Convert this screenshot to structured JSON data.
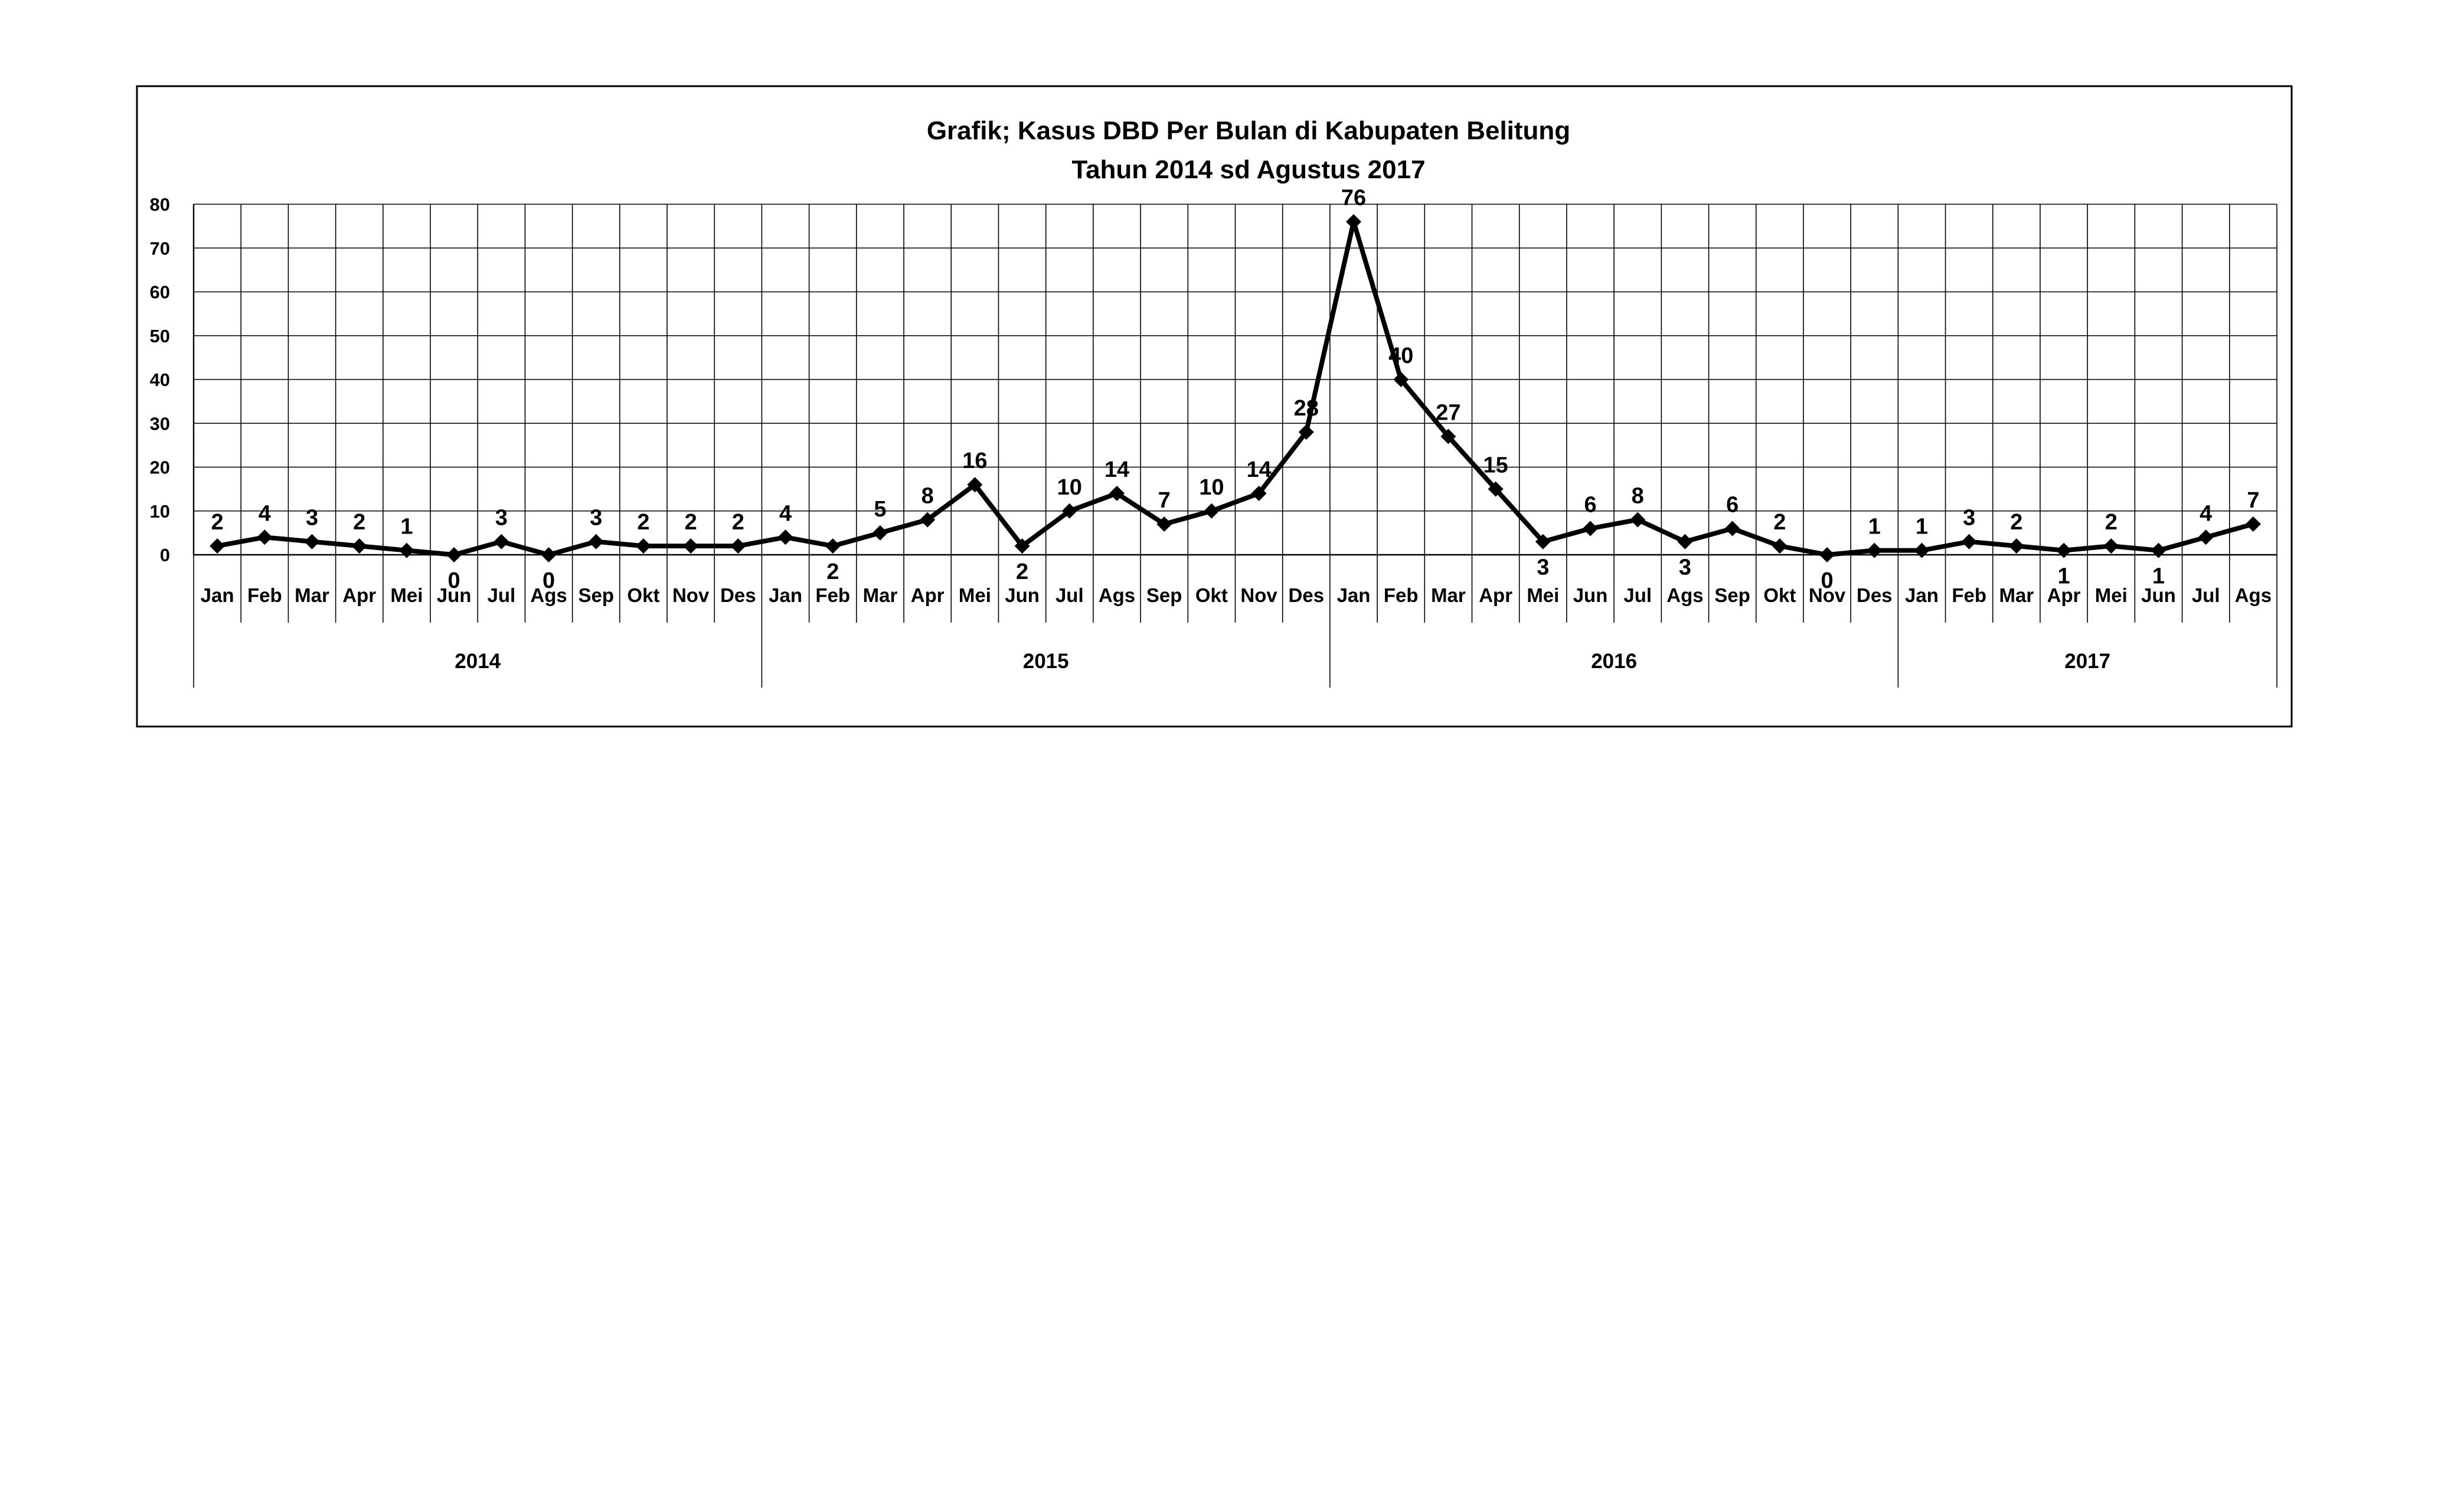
{
  "chart_data": {
    "type": "line",
    "title": "Grafik; Kasus DBD Per Bulan di Kabupaten Belitung",
    "subtitle": "Tahun 2014 sd  Agustus 2017",
    "xlabel": "",
    "ylabel": "",
    "ylim": [
      0,
      80
    ],
    "yticks": [
      "0",
      "10",
      "20",
      "30",
      "40",
      "50",
      "60",
      "70",
      "80"
    ],
    "grid": true,
    "legend": "none",
    "line_color": "#000000",
    "marker": "diamond",
    "categories": [
      "Jan",
      "Feb",
      "Mar",
      "Apr",
      "Mei",
      "Jun",
      "Jul",
      "Ags",
      "Sep",
      "Okt",
      "Nov",
      "Des",
      "Jan",
      "Feb",
      "Mar",
      "Apr",
      "Mei",
      "Jun",
      "Jul",
      "Ags",
      "Sep",
      "Okt",
      "Nov",
      "Des",
      "Jan",
      "Feb",
      "Mar",
      "Apr",
      "Mei",
      "Jun",
      "Jul",
      "Ags",
      "Sep",
      "Okt",
      "Nov",
      "Des",
      "Jan",
      "Feb",
      "Mar",
      "Apr",
      "Mei",
      "Jun",
      "Jul",
      "Ags"
    ],
    "groups": [
      {
        "label": "2014",
        "count": 12
      },
      {
        "label": "2015",
        "count": 12
      },
      {
        "label": "2016",
        "count": 12
      },
      {
        "label": "2017",
        "count": 8
      }
    ],
    "values": [
      2,
      4,
      3,
      2,
      1,
      0,
      3,
      0,
      3,
      2,
      2,
      2,
      4,
      2,
      5,
      8,
      16,
      2,
      10,
      14,
      7,
      10,
      14,
      28,
      76,
      40,
      27,
      15,
      3,
      6,
      8,
      3,
      6,
      2,
      0,
      1,
      1,
      3,
      2,
      1,
      2,
      1,
      4,
      7
    ],
    "data_labels": [
      "2",
      "4",
      "3",
      "2",
      "1",
      "0",
      "3",
      "0",
      "3",
      "2",
      "2",
      "2",
      "4",
      "2",
      "5",
      "8",
      "16",
      "2",
      "10",
      "14",
      "7",
      "10",
      "14",
      "28",
      "76",
      "40",
      "27",
      "15",
      "3",
      "6",
      "8",
      "3",
      "6",
      "2",
      "0",
      "1",
      "1",
      "3",
      "2",
      "1",
      "2",
      "1",
      "4",
      "7"
    ]
  }
}
